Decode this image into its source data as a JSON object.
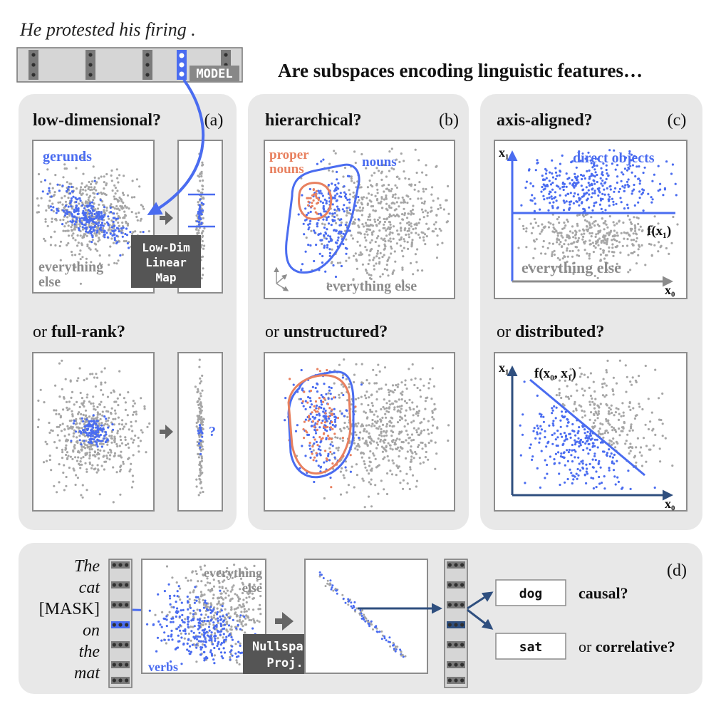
{
  "sentence": "He protested his firing .",
  "model_label": "MODEL",
  "headline": "Are subspaces encoding linguistic features…",
  "panel_a": {
    "tag": "(a)",
    "q1": "low-dimensional?",
    "or_word": "or",
    "q2": "full-rank?",
    "cluster_label": "gerunds",
    "else_line1": "everything",
    "else_line2": "else",
    "map_line1": "Low-Dim",
    "map_line2": "Linear",
    "map_line3": "Map",
    "question_mark": "?"
  },
  "panel_b": {
    "tag": "(b)",
    "q1": "hierarchical?",
    "or_word": "or",
    "q2": "unstructured?",
    "proper_line1": "proper",
    "proper_line2": "nouns",
    "nouns_label": "nouns",
    "else_label": "everything else"
  },
  "panel_c": {
    "tag": "(c)",
    "q1": "axis-aligned?",
    "or_word": "or",
    "q2": "distributed?",
    "x1_axis": "x₁",
    "x0_axis": "x₀",
    "top_label": "direct objects",
    "f1": "f(x₁)",
    "else_label": "everything else",
    "x1_axis_b": "x₁",
    "x0_axis_b": "x₀",
    "f2": "f(x₀, x₁)"
  },
  "panel_d": {
    "tag": "(d)",
    "words": [
      "The",
      "cat",
      "[MASK]",
      "on",
      "the",
      "mat"
    ],
    "else_line1": "everything",
    "else_line2": "else",
    "verbs_label": "verbs",
    "nullspace_line1": "Nullspace",
    "nullspace_line2": "Proj.",
    "out1": "dog",
    "out2": "sat",
    "causal": "causal?",
    "or_word": "or",
    "correlative": "correlative?"
  },
  "colors": {
    "blue": "#4a6cf0",
    "dark_blue": "#2f4f7f",
    "orange": "#e8805f",
    "gray_points": "#a6a6a6",
    "panel_bg": "#e8e8e8",
    "box_border": "#8c8c8c",
    "dark_box": "#555555"
  }
}
